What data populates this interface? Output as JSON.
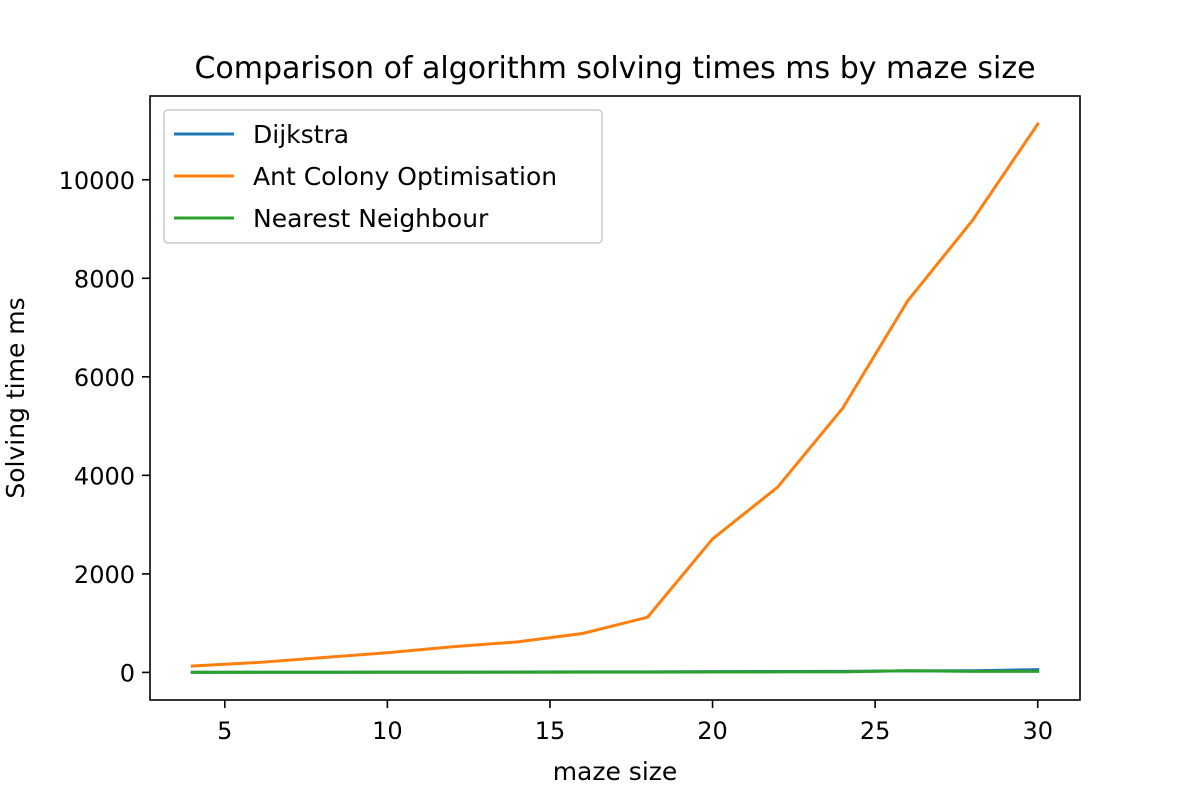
{
  "chart_data": {
    "type": "line",
    "title": "Comparison of algorithm solving times ms by maze size",
    "xlabel": "maze size",
    "ylabel": "Solving time ms",
    "xlim": [
      2.7,
      31.3
    ],
    "ylim": [
      -560,
      11700
    ],
    "xticks": [
      5,
      10,
      15,
      20,
      25,
      30
    ],
    "yticks": [
      0,
      2000,
      4000,
      6000,
      8000,
      10000
    ],
    "grid": false,
    "legend_position": "top-left",
    "x": [
      4,
      6,
      8,
      10,
      12,
      14,
      16,
      18,
      20,
      22,
      24,
      26,
      28,
      30
    ],
    "series": [
      {
        "name": "Dijkstra",
        "color": "#1f77b4",
        "values": [
          2,
          3,
          4,
          5,
          6,
          8,
          10,
          12,
          15,
          18,
          22,
          30,
          35,
          55
        ]
      },
      {
        "name": "Ant Colony Optimisation",
        "color": "#ff7f0e",
        "values": [
          130,
          200,
          300,
          400,
          520,
          620,
          790,
          1120,
          2710,
          3760,
          5360,
          7540,
          9180,
          11130
        ]
      },
      {
        "name": "Nearest Neighbour",
        "color": "#2ca02c",
        "values": [
          1,
          2,
          2,
          3,
          4,
          4,
          5,
          6,
          8,
          10,
          12,
          35,
          20,
          20
        ]
      }
    ]
  }
}
